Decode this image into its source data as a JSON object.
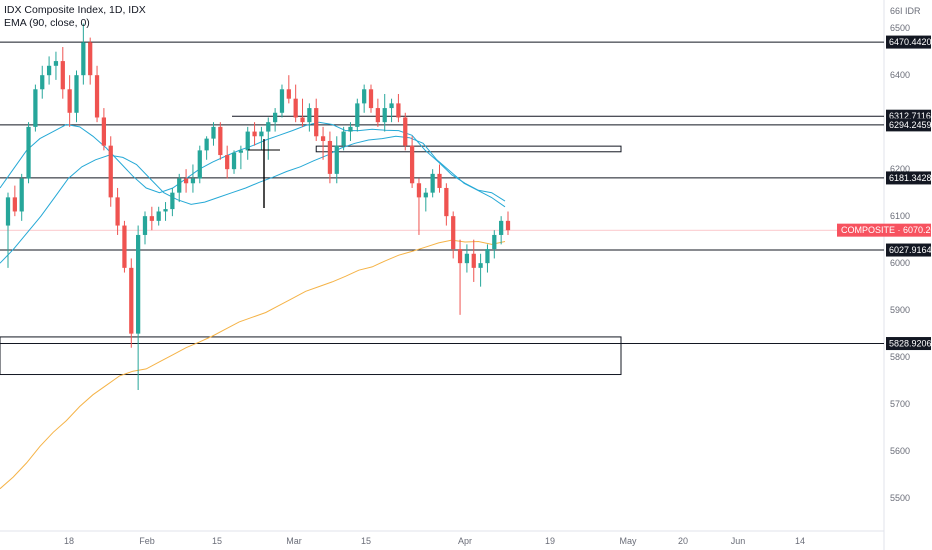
{
  "legend": {
    "title": "IDX Composite Index, 1D, IDX",
    "indicator": "EMA (90, close, 0)"
  },
  "chart_data": {
    "type": "candlestick",
    "currency": "IDR",
    "currency_label": "66I IDR",
    "ylim": [
      5430,
      6560
    ],
    "y_ticks": [
      "6500",
      "6400",
      "6300",
      "6200",
      "6100",
      "6000",
      "5900",
      "5800",
      "5700",
      "5600",
      "5500"
    ],
    "x_ticks": [
      "18",
      "Feb",
      "15",
      "Mar",
      "15",
      "Apr",
      "19",
      "May",
      "20",
      "Jun",
      "14"
    ],
    "last_price": {
      "label": "COMPOSITE",
      "value": "6070.2090",
      "v": 6070.2
    },
    "price_lines": [
      {
        "label": "6470.4420",
        "v": 6470.442
      },
      {
        "label": "6312.7116",
        "v": 6312.7116
      },
      {
        "label": "6294.2459",
        "v": 6294.2459
      },
      {
        "label": "6181.3428",
        "v": 6181.3428
      },
      {
        "label": "6027.9164",
        "v": 6027.9164
      },
      {
        "label": "5828.9206",
        "v": 5828.9206
      }
    ],
    "zones": [
      {
        "from_idx": 45,
        "to_idx": 68,
        "top": 6249,
        "bottom": 6237
      },
      {
        "from_idx": 0,
        "to_idx": 68,
        "top": 5843,
        "bottom": 5763
      }
    ],
    "candles": [
      [
        6080,
        6150,
        5990,
        6140
      ],
      [
        6140,
        6165,
        6100,
        6110
      ],
      [
        6110,
        6190,
        6090,
        6180
      ],
      [
        6180,
        6300,
        6170,
        6290
      ],
      [
        6290,
        6380,
        6280,
        6370
      ],
      [
        6370,
        6420,
        6350,
        6400
      ],
      [
        6400,
        6440,
        6380,
        6420
      ],
      [
        6420,
        6450,
        6390,
        6430
      ],
      [
        6430,
        6460,
        6350,
        6370
      ],
      [
        6370,
        6400,
        6290,
        6320
      ],
      [
        6320,
        6410,
        6300,
        6400
      ],
      [
        6400,
        6510,
        6380,
        6470
      ],
      [
        6470,
        6480,
        6380,
        6400
      ],
      [
        6400,
        6420,
        6300,
        6310
      ],
      [
        6310,
        6330,
        6240,
        6250
      ],
      [
        6250,
        6270,
        6120,
        6140
      ],
      [
        6140,
        6160,
        6060,
        6080
      ],
      [
        6080,
        6090,
        5980,
        5990
      ],
      [
        5990,
        6010,
        5820,
        5850
      ],
      [
        5850,
        6080,
        5730,
        6060
      ],
      [
        6060,
        6110,
        6040,
        6100
      ],
      [
        6100,
        6120,
        6070,
        6090
      ],
      [
        6090,
        6120,
        6080,
        6110
      ],
      [
        6110,
        6130,
        6090,
        6115
      ],
      [
        6115,
        6160,
        6100,
        6150
      ],
      [
        6150,
        6190,
        6130,
        6180
      ],
      [
        6180,
        6200,
        6150,
        6170
      ],
      [
        6170,
        6210,
        6150,
        6180
      ],
      [
        6180,
        6250,
        6170,
        6240
      ],
      [
        6240,
        6270,
        6220,
        6265
      ],
      [
        6265,
        6300,
        6250,
        6290
      ],
      [
        6290,
        6300,
        6220,
        6230
      ],
      [
        6230,
        6250,
        6180,
        6200
      ],
      [
        6200,
        6240,
        6190,
        6235
      ],
      [
        6235,
        6250,
        6200,
        6240
      ],
      [
        6240,
        6290,
        6220,
        6280
      ],
      [
        6280,
        6300,
        6250,
        6270
      ],
      [
        6270,
        6290,
        6240,
        6280
      ],
      [
        6280,
        6310,
        6220,
        6300
      ],
      [
        6300,
        6330,
        6280,
        6320
      ],
      [
        6320,
        6380,
        6310,
        6370
      ],
      [
        6370,
        6400,
        6340,
        6350
      ],
      [
        6350,
        6380,
        6300,
        6310
      ],
      [
        6310,
        6350,
        6290,
        6300
      ],
      [
        6300,
        6340,
        6280,
        6330
      ],
      [
        6330,
        6350,
        6260,
        6270
      ],
      [
        6270,
        6290,
        6220,
        6260
      ],
      [
        6260,
        6280,
        6170,
        6190
      ],
      [
        6190,
        6270,
        6170,
        6250
      ],
      [
        6250,
        6290,
        6240,
        6280
      ],
      [
        6280,
        6300,
        6260,
        6290
      ],
      [
        6290,
        6350,
        6280,
        6340
      ],
      [
        6340,
        6380,
        6320,
        6370
      ],
      [
        6370,
        6380,
        6320,
        6330
      ],
      [
        6330,
        6350,
        6290,
        6300
      ],
      [
        6300,
        6360,
        6280,
        6330
      ],
      [
        6330,
        6350,
        6300,
        6340
      ],
      [
        6340,
        6360,
        6300,
        6310
      ],
      [
        6310,
        6320,
        6240,
        6250
      ],
      [
        6250,
        6270,
        6160,
        6170
      ],
      [
        6170,
        6180,
        6060,
        6140
      ],
      [
        6140,
        6160,
        6110,
        6150
      ],
      [
        6150,
        6200,
        6140,
        6190
      ],
      [
        6190,
        6210,
        6150,
        6160
      ],
      [
        6160,
        6170,
        6080,
        6100
      ],
      [
        6100,
        6110,
        6010,
        6030
      ],
      [
        6030,
        6050,
        5890,
        6000
      ],
      [
        6000,
        6040,
        5980,
        6020
      ],
      [
        6020,
        6050,
        5960,
        5990
      ],
      [
        5990,
        6020,
        5950,
        6000
      ],
      [
        6000,
        6040,
        5980,
        6030
      ],
      [
        6030,
        6070,
        6010,
        6060
      ],
      [
        6060,
        6100,
        6040,
        6090
      ],
      [
        6090,
        6110,
        6060,
        6070
      ]
    ],
    "ema_fast": [
      6160,
      6200,
      6240,
      6265,
      6280,
      6295,
      6290,
      6270,
      6245,
      6215,
      6185,
      6160,
      6150,
      6160,
      6180,
      6200,
      6215,
      6228,
      6240,
      6250,
      6262,
      6272,
      6282,
      6293,
      6300,
      6295,
      6282,
      6282,
      6285,
      6283,
      6282,
      6272,
      6240,
      6215,
      6188,
      6170,
      6155,
      6150,
      6132
    ],
    "ema_slow": [
      6000,
      6030,
      6065,
      6100,
      6140,
      6180,
      6205,
      6220,
      6230,
      6225,
      6210,
      6180,
      6150,
      6135,
      6125,
      6130,
      6140,
      6150,
      6160,
      6172,
      6183,
      6195,
      6205,
      6218,
      6230,
      6245,
      6255,
      6262,
      6265,
      6270,
      6267,
      6255,
      6220,
      6195,
      6170,
      6155,
      6140,
      6120
    ],
    "ema_90": [
      5520,
      5545,
      5575,
      5610,
      5640,
      5665,
      5695,
      5720,
      5740,
      5760,
      5770,
      5775,
      5790,
      5805,
      5820,
      5832,
      5845,
      5860,
      5875,
      5885,
      5895,
      5910,
      5925,
      5940,
      5950,
      5960,
      5972,
      5985,
      5992,
      6005,
      6017,
      6025,
      6034,
      6043,
      6049,
      6045,
      6046,
      6040,
      6046
    ]
  }
}
